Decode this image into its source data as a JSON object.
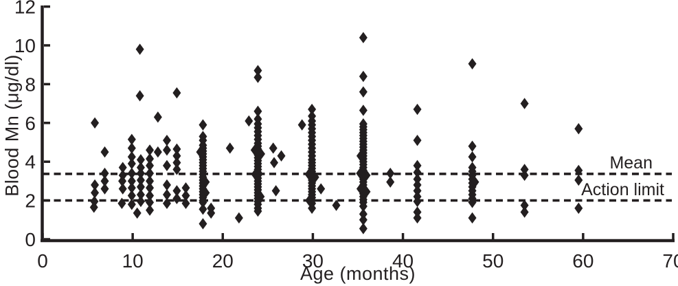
{
  "figure": {
    "background": "#ffffff",
    "ink_color": "#231f20"
  },
  "chart_data": {
    "type": "scatter",
    "title": "",
    "xlabel": "Age (months)",
    "ylabel": "Blood Mn (μg/dl)",
    "xlim": [
      0,
      70
    ],
    "ylim": [
      0,
      12
    ],
    "x_ticks": [
      0,
      10,
      20,
      30,
      40,
      50,
      60,
      70
    ],
    "y_ticks": [
      0,
      2,
      4,
      6,
      8,
      10,
      12
    ],
    "grid": false,
    "legend": "none",
    "marker": "diamond",
    "marker_color": "#231f20",
    "ref_lines": [
      {
        "label": "Mean",
        "value": 3.37,
        "style": "dashed",
        "color": "#231f20"
      },
      {
        "label": "Action limit",
        "value": 2.0,
        "style": "dashed",
        "color": "#231f20"
      }
    ],
    "points": [
      [
        5.8,
        6.0
      ],
      [
        5.8,
        2.8
      ],
      [
        5.8,
        2.4
      ],
      [
        5.75,
        1.95
      ],
      [
        5.7,
        1.65
      ],
      [
        6.9,
        4.5
      ],
      [
        6.9,
        3.4
      ],
      [
        6.9,
        3.0
      ],
      [
        6.9,
        2.6
      ],
      [
        8.9,
        3.7
      ],
      [
        8.9,
        3.3
      ],
      [
        8.85,
        3.0
      ],
      [
        8.9,
        2.6
      ],
      [
        8.8,
        1.85
      ],
      [
        9.9,
        5.15
      ],
      [
        9.9,
        4.7
      ],
      [
        9.9,
        4.25
      ],
      [
        9.9,
        3.9
      ],
      [
        9.9,
        3.4
      ],
      [
        9.9,
        3.0
      ],
      [
        9.9,
        2.65
      ],
      [
        9.9,
        2.25
      ],
      [
        9.9,
        1.8
      ],
      [
        10.8,
        9.8
      ],
      [
        10.8,
        7.4
      ],
      [
        10.9,
        4.1
      ],
      [
        10.9,
        3.7
      ],
      [
        10.9,
        3.4
      ],
      [
        10.9,
        3.05
      ],
      [
        10.9,
        2.7
      ],
      [
        10.9,
        2.3
      ],
      [
        10.9,
        1.95
      ],
      [
        10.5,
        1.35
      ],
      [
        11.9,
        4.6
      ],
      [
        11.9,
        4.15
      ],
      [
        11.9,
        3.8
      ],
      [
        11.9,
        3.4
      ],
      [
        11.9,
        3.0
      ],
      [
        11.9,
        2.65
      ],
      [
        11.9,
        2.25
      ],
      [
        11.9,
        1.9
      ],
      [
        11.9,
        1.5
      ],
      [
        12.8,
        6.3
      ],
      [
        12.8,
        4.5
      ],
      [
        13.8,
        5.1
      ],
      [
        13.8,
        4.6
      ],
      [
        13.8,
        3.8
      ],
      [
        13.8,
        2.8
      ],
      [
        13.8,
        2.3
      ],
      [
        13.8,
        1.85
      ],
      [
        14.9,
        7.55
      ],
      [
        14.9,
        4.65
      ],
      [
        14.9,
        4.3
      ],
      [
        14.9,
        3.95
      ],
      [
        14.9,
        3.6
      ],
      [
        14.9,
        2.5
      ],
      [
        14.9,
        2.1
      ],
      [
        15.9,
        2.65
      ],
      [
        15.9,
        2.25
      ],
      [
        15.9,
        1.85
      ],
      [
        17.8,
        5.9
      ],
      [
        17.8,
        5.3
      ],
      [
        17.8,
        5.1
      ],
      [
        17.8,
        4.85
      ],
      [
        17.8,
        4.7
      ],
      [
        17.8,
        4.55
      ],
      [
        17.5,
        4.5
      ],
      [
        17.8,
        4.4
      ],
      [
        17.8,
        4.25
      ],
      [
        17.8,
        4.1
      ],
      [
        17.8,
        3.95
      ],
      [
        17.8,
        3.8
      ],
      [
        17.8,
        3.65
      ],
      [
        17.8,
        3.5
      ],
      [
        17.8,
        3.35
      ],
      [
        17.8,
        3.2
      ],
      [
        17.8,
        3.05
      ],
      [
        18.1,
        2.95
      ],
      [
        17.8,
        2.9
      ],
      [
        17.8,
        2.75
      ],
      [
        17.8,
        2.6
      ],
      [
        17.8,
        2.45
      ],
      [
        18.1,
        2.4
      ],
      [
        17.8,
        2.3
      ],
      [
        17.8,
        2.15
      ],
      [
        17.8,
        2.0
      ],
      [
        17.8,
        1.9
      ],
      [
        17.8,
        1.55
      ],
      [
        17.8,
        0.8
      ],
      [
        18.7,
        1.6
      ],
      [
        18.7,
        1.35
      ],
      [
        20.8,
        4.7
      ],
      [
        21.8,
        1.1
      ],
      [
        22.9,
        6.1
      ],
      [
        23.9,
        8.7
      ],
      [
        23.9,
        8.35
      ],
      [
        23.9,
        6.6
      ],
      [
        23.9,
        6.2
      ],
      [
        23.9,
        5.95
      ],
      [
        23.9,
        5.75
      ],
      [
        23.9,
        5.55
      ],
      [
        23.9,
        5.35
      ],
      [
        23.9,
        5.15
      ],
      [
        23.9,
        4.95
      ],
      [
        23.9,
        4.8
      ],
      [
        23.9,
        4.65
      ],
      [
        23.55,
        4.6
      ],
      [
        23.9,
        4.5
      ],
      [
        24.25,
        4.4
      ],
      [
        23.9,
        4.35
      ],
      [
        23.9,
        4.2
      ],
      [
        23.9,
        4.05
      ],
      [
        23.9,
        3.9
      ],
      [
        23.9,
        3.75
      ],
      [
        23.9,
        3.6
      ],
      [
        23.9,
        3.45
      ],
      [
        23.6,
        3.35
      ],
      [
        23.9,
        3.3
      ],
      [
        23.9,
        3.15
      ],
      [
        23.9,
        3.0
      ],
      [
        23.9,
        2.85
      ],
      [
        23.9,
        2.7
      ],
      [
        23.9,
        2.55
      ],
      [
        23.9,
        2.4
      ],
      [
        23.9,
        2.25
      ],
      [
        24.2,
        2.2
      ],
      [
        23.9,
        2.1
      ],
      [
        23.9,
        1.95
      ],
      [
        23.9,
        1.8
      ],
      [
        23.9,
        1.6
      ],
      [
        23.9,
        1.45
      ],
      [
        25.6,
        4.7
      ],
      [
        26.5,
        4.3
      ],
      [
        25.7,
        3.95
      ],
      [
        25.9,
        2.5
      ],
      [
        28.8,
        5.9
      ],
      [
        29.9,
        6.7
      ],
      [
        29.9,
        6.35
      ],
      [
        29.9,
        6.1
      ],
      [
        29.9,
        5.9
      ],
      [
        29.9,
        5.7
      ],
      [
        29.9,
        5.5
      ],
      [
        29.9,
        5.3
      ],
      [
        29.9,
        5.1
      ],
      [
        29.9,
        4.9
      ],
      [
        29.9,
        4.7
      ],
      [
        29.9,
        4.5
      ],
      [
        29.9,
        4.3
      ],
      [
        29.9,
        4.1
      ],
      [
        29.9,
        3.95
      ],
      [
        29.9,
        3.8
      ],
      [
        29.9,
        3.65
      ],
      [
        29.9,
        3.5
      ],
      [
        29.55,
        3.35
      ],
      [
        29.9,
        3.35
      ],
      [
        30.25,
        3.2
      ],
      [
        29.9,
        3.05
      ],
      [
        29.9,
        2.9
      ],
      [
        29.9,
        2.75
      ],
      [
        29.9,
        2.6
      ],
      [
        29.9,
        2.45
      ],
      [
        29.9,
        2.3
      ],
      [
        29.9,
        2.15
      ],
      [
        29.6,
        2.0
      ],
      [
        29.9,
        2.0
      ],
      [
        29.9,
        1.85
      ],
      [
        29.9,
        1.6
      ],
      [
        30.9,
        2.6
      ],
      [
        32.6,
        1.75
      ],
      [
        35.6,
        10.4
      ],
      [
        35.6,
        8.4
      ],
      [
        35.6,
        7.6
      ],
      [
        35.6,
        6.65
      ],
      [
        35.6,
        5.95
      ],
      [
        35.6,
        5.8
      ],
      [
        35.6,
        5.65
      ],
      [
        35.6,
        5.5
      ],
      [
        35.6,
        5.35
      ],
      [
        35.6,
        5.2
      ],
      [
        35.6,
        5.05
      ],
      [
        35.6,
        4.9
      ],
      [
        35.6,
        4.75
      ],
      [
        35.6,
        4.6
      ],
      [
        35.6,
        4.45
      ],
      [
        35.3,
        4.3
      ],
      [
        35.6,
        4.3
      ],
      [
        35.6,
        4.15
      ],
      [
        35.6,
        4.0
      ],
      [
        35.6,
        3.85
      ],
      [
        35.6,
        3.7
      ],
      [
        35.6,
        3.55
      ],
      [
        35.25,
        3.4
      ],
      [
        35.6,
        3.4
      ],
      [
        35.95,
        3.3
      ],
      [
        35.6,
        3.25
      ],
      [
        35.6,
        3.1
      ],
      [
        35.6,
        2.95
      ],
      [
        35.6,
        2.8
      ],
      [
        35.6,
        2.65
      ],
      [
        35.3,
        2.6
      ],
      [
        35.6,
        2.5
      ],
      [
        35.95,
        2.45
      ],
      [
        35.6,
        2.35
      ],
      [
        35.6,
        2.2
      ],
      [
        35.6,
        2.05
      ],
      [
        35.6,
        1.9
      ],
      [
        35.6,
        1.7
      ],
      [
        35.6,
        1.3
      ],
      [
        35.6,
        1.0
      ],
      [
        35.6,
        0.55
      ],
      [
        38.6,
        3.4
      ],
      [
        38.6,
        2.95
      ],
      [
        41.6,
        6.7
      ],
      [
        41.6,
        5.1
      ],
      [
        41.6,
        3.8
      ],
      [
        41.6,
        3.45
      ],
      [
        41.6,
        3.1
      ],
      [
        41.6,
        2.8
      ],
      [
        41.6,
        2.5
      ],
      [
        41.6,
        2.2
      ],
      [
        41.6,
        1.95
      ],
      [
        41.6,
        1.4
      ],
      [
        41.6,
        1.1
      ],
      [
        47.7,
        9.05
      ],
      [
        47.7,
        4.8
      ],
      [
        47.7,
        4.25
      ],
      [
        47.7,
        3.7
      ],
      [
        47.7,
        3.5
      ],
      [
        47.7,
        3.3
      ],
      [
        47.7,
        3.1
      ],
      [
        48.0,
        2.95
      ],
      [
        47.7,
        2.9
      ],
      [
        47.7,
        2.7
      ],
      [
        47.7,
        2.5
      ],
      [
        47.7,
        2.3
      ],
      [
        47.7,
        2.1
      ],
      [
        47.7,
        1.9
      ],
      [
        47.7,
        1.1
      ],
      [
        53.5,
        7.0
      ],
      [
        53.5,
        3.6
      ],
      [
        53.5,
        3.3
      ],
      [
        53.5,
        1.75
      ],
      [
        53.5,
        1.4
      ],
      [
        59.5,
        5.7
      ],
      [
        59.5,
        3.55
      ],
      [
        59.5,
        3.05
      ],
      [
        59.5,
        1.6
      ]
    ]
  }
}
